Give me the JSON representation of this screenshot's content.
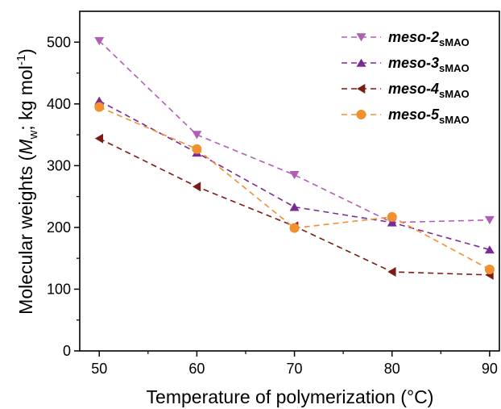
{
  "chart_data": {
    "type": "line",
    "xlabel": "Temperature of polymerization (°C)",
    "ylabel": {
      "pre": "Molecular weights (",
      "M": "M",
      "sub": "w",
      "mid": "; kg mol",
      "sup": "-1",
      "post": ")"
    },
    "xlim": [
      48,
      91
    ],
    "ylim": [
      0,
      550
    ],
    "x": [
      50,
      60,
      70,
      80,
      90
    ],
    "x_ticks": [
      50,
      60,
      70,
      80,
      90
    ],
    "y_ticks": [
      0,
      100,
      200,
      300,
      400,
      500
    ],
    "grid": false,
    "line_style": "dashed",
    "legend_position": "top-right",
    "series": [
      {
        "name": "meso-2",
        "name_main": "meso-2",
        "name_sub": "sMAO",
        "marker": "triangle-down",
        "color": "#b05fb5",
        "values": [
          502,
          350,
          285,
          208,
          212
        ]
      },
      {
        "name": "meso-3",
        "name_main": "meso-3",
        "name_sub": "sMAO",
        "marker": "triangle-up",
        "color": "#7a2b94",
        "values": [
          405,
          321,
          233,
          208,
          164
        ]
      },
      {
        "name": "meso-4",
        "name_main": "meso-4",
        "name_sub": "sMAO",
        "marker": "triangle-left",
        "color": "#7c1a16",
        "values": [
          344,
          266,
          202,
          128,
          123
        ]
      },
      {
        "name": "meso-5",
        "name_main": "meso-5",
        "name_sub": "sMAO",
        "marker": "circle",
        "color": "#f0902f",
        "values": [
          395,
          327,
          199,
          217,
          132
        ]
      }
    ]
  }
}
